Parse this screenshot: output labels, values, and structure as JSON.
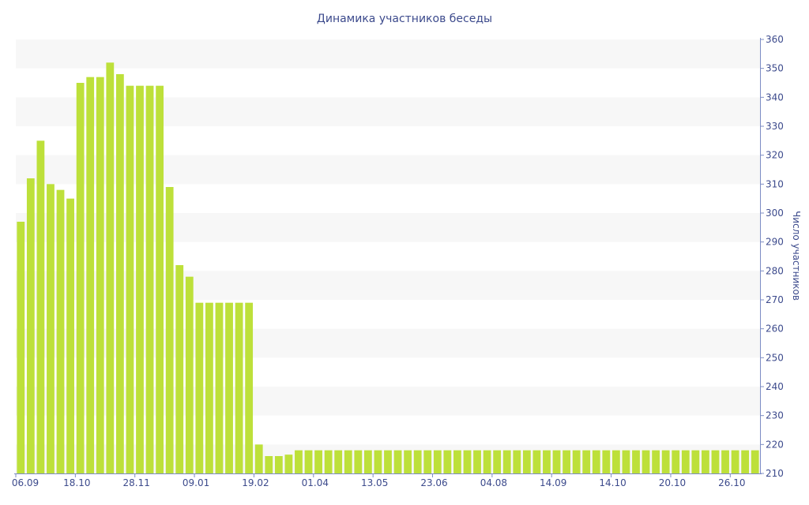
{
  "chart_data": {
    "type": "bar",
    "title": "Динамика участников беседы",
    "xlabel": "",
    "ylabel": "Число участников",
    "ylim": [
      210,
      360
    ],
    "yticks": [
      210,
      220,
      230,
      240,
      250,
      260,
      270,
      280,
      290,
      300,
      310,
      320,
      330,
      340,
      350,
      360
    ],
    "x_tick_labels": [
      "06.09",
      "18.10",
      "28.11",
      "09.01",
      "19.02",
      "01.04",
      "13.05",
      "23.06",
      "04.08",
      "14.09",
      "14.10",
      "20.10",
      "26.10"
    ],
    "x_tick_bar_index": [
      0,
      6,
      12,
      18,
      24,
      30,
      36,
      42,
      48,
      54,
      60,
      66,
      72
    ],
    "values": [
      297,
      312,
      325,
      310,
      308,
      305,
      345,
      347,
      347,
      352,
      348,
      344,
      344,
      344,
      344,
      309,
      282,
      278,
      269,
      269,
      269,
      269,
      269,
      269,
      220,
      216,
      216,
      216.5,
      218,
      218,
      218,
      218,
      218,
      218,
      218,
      218,
      218,
      218,
      218,
      218,
      218,
      218,
      218,
      218,
      218,
      218,
      218,
      218,
      218,
      218,
      218,
      218,
      218,
      218,
      218,
      218,
      218,
      218,
      218,
      218,
      218,
      218,
      218,
      218,
      218,
      218,
      218,
      218,
      218,
      218,
      218,
      218,
      218,
      218,
      218
    ],
    "bar_color": "#bde03a",
    "band_color": "#f7f7f7",
    "axis_color": "#7c8cc4",
    "text_color": "#3c4a8c",
    "grid": "alternating horizontal bands",
    "y_axis_position": "right"
  }
}
